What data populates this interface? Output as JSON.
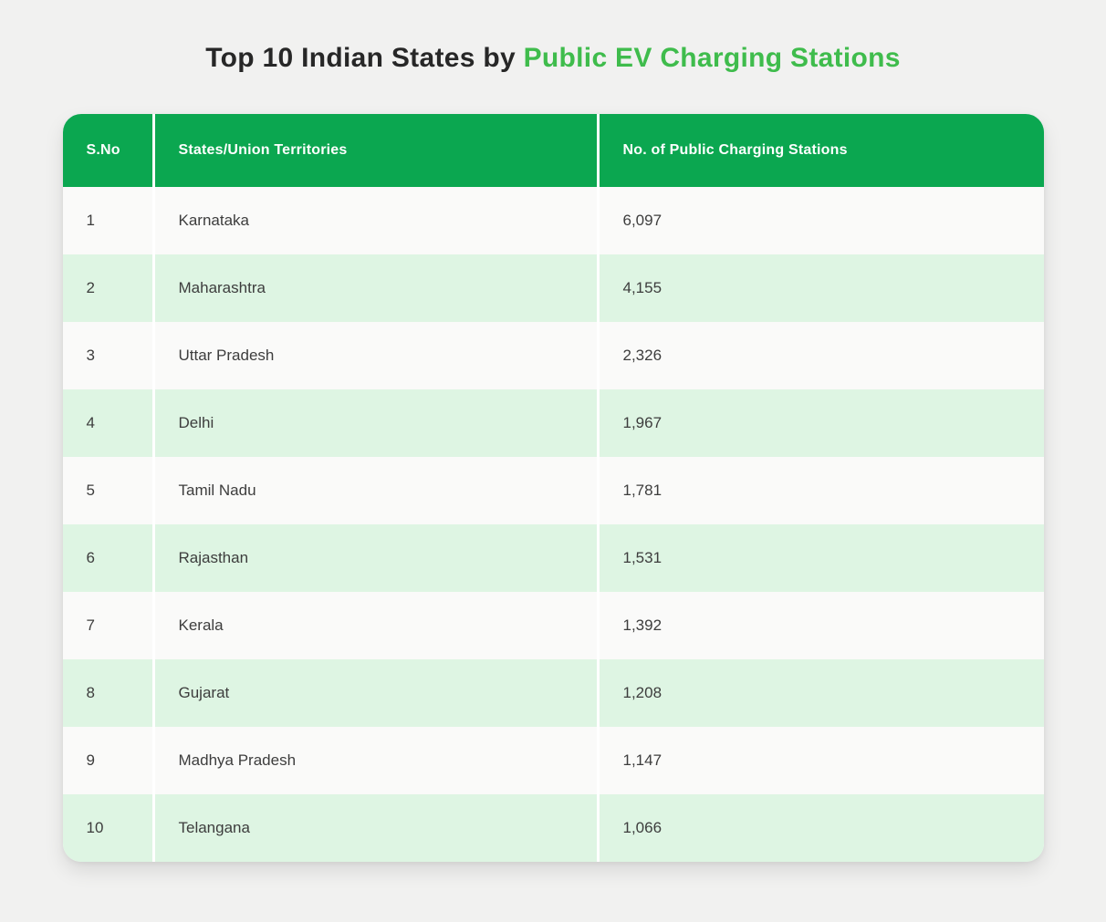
{
  "title": {
    "prefix": "Top 10 Indian States by",
    "highlight": "Public EV Charging Stations"
  },
  "colors": {
    "page_bg": "#f1f1f0",
    "header_bg": "#0ba750",
    "header_text": "#ffffff",
    "row_bg": "#fafaf9",
    "row_alt_bg": "#def5e3",
    "cell_text": "#3d3d3d",
    "title_dark": "#272727",
    "title_green": "#3fbc4c"
  },
  "chart_data": {
    "type": "table",
    "title": "Top 10 Indian States by Public EV Charging Stations",
    "columns": [
      "S.No",
      "States/Union Territories",
      "No. of Public Charging Stations"
    ],
    "rows": [
      [
        "1",
        "Karnataka",
        "6,097"
      ],
      [
        "2",
        "Maharashtra",
        "4,155"
      ],
      [
        "3",
        "Uttar Pradesh",
        "2,326"
      ],
      [
        "4",
        "Delhi",
        "1,967"
      ],
      [
        "5",
        "Tamil Nadu",
        "1,781"
      ],
      [
        "6",
        "Rajasthan",
        "1,531"
      ],
      [
        "7",
        "Kerala",
        "1,392"
      ],
      [
        "8",
        "Gujarat",
        "1,208"
      ],
      [
        "9",
        "Madhya Pradesh",
        "1,147"
      ],
      [
        "10",
        "Telangana",
        "1,066"
      ]
    ]
  }
}
